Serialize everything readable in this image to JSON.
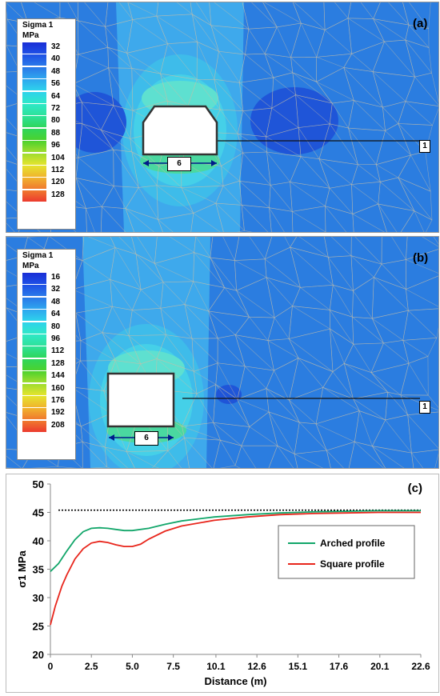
{
  "panel_a": {
    "label": "(a)",
    "legend_title": "Sigma 1",
    "legend_unit": "MPa",
    "legend_values": [
      "32",
      "40",
      "48",
      "56",
      "64",
      "72",
      "80",
      "88",
      "96",
      "104",
      "112",
      "120",
      "128"
    ],
    "legend_colors": [
      "#1a2ed6",
      "#1e50e6",
      "#2a78e8",
      "#2ea6ee",
      "#2ed2ec",
      "#2ee8c8",
      "#2ee29a",
      "#2ed65c",
      "#4cd22e",
      "#9edc2e",
      "#e4e42e",
      "#f0b42e",
      "#f07a2e",
      "#ec3a2e"
    ],
    "width_tag": "6",
    "line_tag": "1"
  },
  "panel_b": {
    "label": "(b)",
    "legend_title": "Sigma 1",
    "legend_unit": "MPa",
    "legend_values": [
      "16",
      "32",
      "48",
      "64",
      "80",
      "96",
      "112",
      "128",
      "144",
      "160",
      "176",
      "192",
      "208"
    ],
    "legend_colors": [
      "#1a2ed6",
      "#1e50e6",
      "#2a78e8",
      "#2ea6ee",
      "#2ed2ec",
      "#2ee8c8",
      "#2ee29a",
      "#2ed65c",
      "#4cd22e",
      "#9edc2e",
      "#e4e42e",
      "#f0b42e",
      "#f07a2e",
      "#ec3a2e"
    ],
    "width_tag": "6",
    "line_tag": "1"
  },
  "colors": {
    "background": "#2b7de0",
    "zone_light": "#3ea9ec",
    "zone_cyan": "#45d0e8",
    "zone_dark": "#1f55d8",
    "mesh": "#c8c0a8",
    "arched": "#12a66a",
    "square": "#e8261c",
    "reference": "#000000"
  },
  "chart_data": {
    "type": "line",
    "panel_label": "(c)",
    "xlabel": "Distance (m)",
    "ylabel": "σ1 MPa",
    "ylim": [
      20,
      50
    ],
    "xlim": [
      0,
      22.6
    ],
    "xticks": [
      "0",
      "2.5",
      "5.0",
      "7.5",
      "10.1",
      "12.6",
      "15.1",
      "17.6",
      "20.1",
      "22.6"
    ],
    "xtick_values": [
      0,
      2.5,
      5.0,
      7.5,
      10.1,
      12.6,
      15.1,
      17.6,
      20.1,
      22.6
    ],
    "yticks": [
      "20",
      "25",
      "30",
      "35",
      "40",
      "45",
      "50"
    ],
    "legend_position": "right",
    "reference_line": {
      "y": 45.4,
      "style": "dotted"
    },
    "series": [
      {
        "name": "Arched profile",
        "color": "#12a66a",
        "x": [
          0,
          0.5,
          1.0,
          1.5,
          2.0,
          2.5,
          3.0,
          3.5,
          4.0,
          4.5,
          5.0,
          6.0,
          7.0,
          8.0,
          10.0,
          12.0,
          14.0,
          16.0,
          18.0,
          20.0,
          22.6
        ],
        "y": [
          34.6,
          36.0,
          38.2,
          40.2,
          41.6,
          42.2,
          42.3,
          42.2,
          42.0,
          41.8,
          41.8,
          42.2,
          42.9,
          43.5,
          44.2,
          44.6,
          44.9,
          45.1,
          45.2,
          45.3,
          45.3
        ]
      },
      {
        "name": "Square profile",
        "color": "#e8261c",
        "x": [
          0,
          0.3,
          0.7,
          1.0,
          1.5,
          2.0,
          2.5,
          3.0,
          3.5,
          4.0,
          4.5,
          5.0,
          5.5,
          6.0,
          7.0,
          8.0,
          10.0,
          12.0,
          14.0,
          16.0,
          18.0,
          20.0,
          22.6
        ],
        "y": [
          25.2,
          28.5,
          32.0,
          34.0,
          36.8,
          38.6,
          39.6,
          39.9,
          39.7,
          39.3,
          39.0,
          39.0,
          39.4,
          40.3,
          41.7,
          42.6,
          43.6,
          44.2,
          44.6,
          44.8,
          44.9,
          45.0,
          45.0
        ]
      }
    ]
  }
}
